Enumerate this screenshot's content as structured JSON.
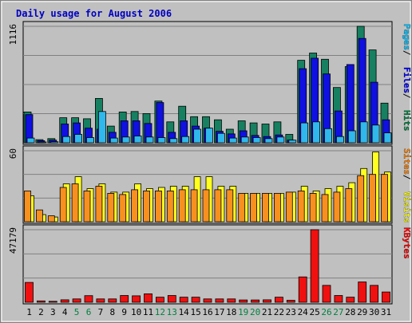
{
  "chart_data": {
    "type": "bar",
    "title": "Daily usage for August 2006",
    "categories": [
      "1",
      "2",
      "3",
      "4",
      "5",
      "6",
      "7",
      "8",
      "9",
      "10",
      "11",
      "12",
      "13",
      "14",
      "15",
      "16",
      "17",
      "18",
      "19",
      "20",
      "21",
      "22",
      "23",
      "24",
      "25",
      "26",
      "27",
      "28",
      "29",
      "30",
      "31"
    ],
    "weekend_days": [
      "5",
      "6",
      "12",
      "13",
      "19",
      "20",
      "26",
      "27"
    ],
    "panels": [
      {
        "name": "hits",
        "max_label": "1116",
        "ylim": [
          0,
          1116
        ],
        "legend": [
          {
            "text": "Pages",
            "color": "#00c0ff"
          },
          {
            "text": "Files",
            "color": "#0000ff"
          },
          {
            "text": "Hits",
            "color": "#008040"
          }
        ],
        "series": [
          {
            "name": "Hits",
            "color": "#168060",
            "values": [
              295,
              30,
              40,
              240,
              240,
              230,
              425,
              160,
              295,
              300,
              280,
              400,
              200,
              350,
              250,
              250,
              220,
              130,
              210,
              190,
              180,
              200,
              80,
              790,
              860,
              800,
              530,
              730,
              1116,
              890,
              380
            ]
          },
          {
            "name": "Files",
            "color": "#1010e0",
            "values": [
              270,
              20,
              25,
              180,
              190,
              140,
              130,
              100,
              210,
              210,
              185,
              385,
              100,
              210,
              160,
              140,
              110,
              85,
              115,
              70,
              60,
              75,
              25,
              710,
              810,
              660,
              305,
              750,
              1000,
              580,
              220
            ]
          },
          {
            "name": "Pages",
            "color": "#30b8ec",
            "values": [
              45,
              7,
              10,
              60,
              80,
              50,
              300,
              45,
              55,
              65,
              55,
              50,
              40,
              60,
              130,
              140,
              90,
              45,
              55,
              50,
              40,
              55,
              25,
              190,
              200,
              135,
              60,
              115,
              200,
              170,
              95
            ]
          }
        ]
      },
      {
        "name": "visits",
        "max_label": "60",
        "ylim": [
          0,
          60
        ],
        "legend": [
          {
            "text": "Sites",
            "color": "#ff8000"
          },
          {
            "text": "Visits",
            "color": "#ffff00"
          }
        ],
        "series": [
          {
            "name": "Visits",
            "color": "#ffff20",
            "values": [
              22,
              6,
              4,
              32,
              38,
              28,
              32,
              25,
              25,
              32,
              28,
              29,
              30,
              30,
              38,
              38,
              30,
              30,
              24,
              24,
              24,
              24,
              25,
              30,
              26,
              28,
              30,
              33,
              45,
              59,
              42
            ]
          },
          {
            "name": "Sites",
            "color": "#f89020",
            "values": [
              26,
              10,
              5,
              29,
              32,
              26,
              30,
              24,
              23,
              27,
              26,
              26,
              26,
              27,
              27,
              27,
              27,
              27,
              24,
              24,
              24,
              24,
              25,
              26,
              24,
              23,
              25,
              28,
              39,
              40,
              40
            ]
          }
        ]
      },
      {
        "name": "kbytes",
        "max_label": "47179",
        "ylim": [
          0,
          47179
        ],
        "legend": [
          {
            "text": "KBytes",
            "color": "#ff0000"
          }
        ],
        "series": [
          {
            "name": "KBytes",
            "color": "#f01010",
            "values": [
              12900,
              900,
              600,
              1600,
              2200,
              4300,
              2200,
              2200,
              4400,
              4200,
              5500,
              3300,
              4400,
              3300,
              3300,
              2200,
              2200,
              2200,
              1500,
              1500,
              1600,
              3300,
              1300,
              16500,
              47179,
              11000,
              4400,
              3300,
              13200,
              11000,
              6700
            ]
          }
        ]
      }
    ]
  }
}
